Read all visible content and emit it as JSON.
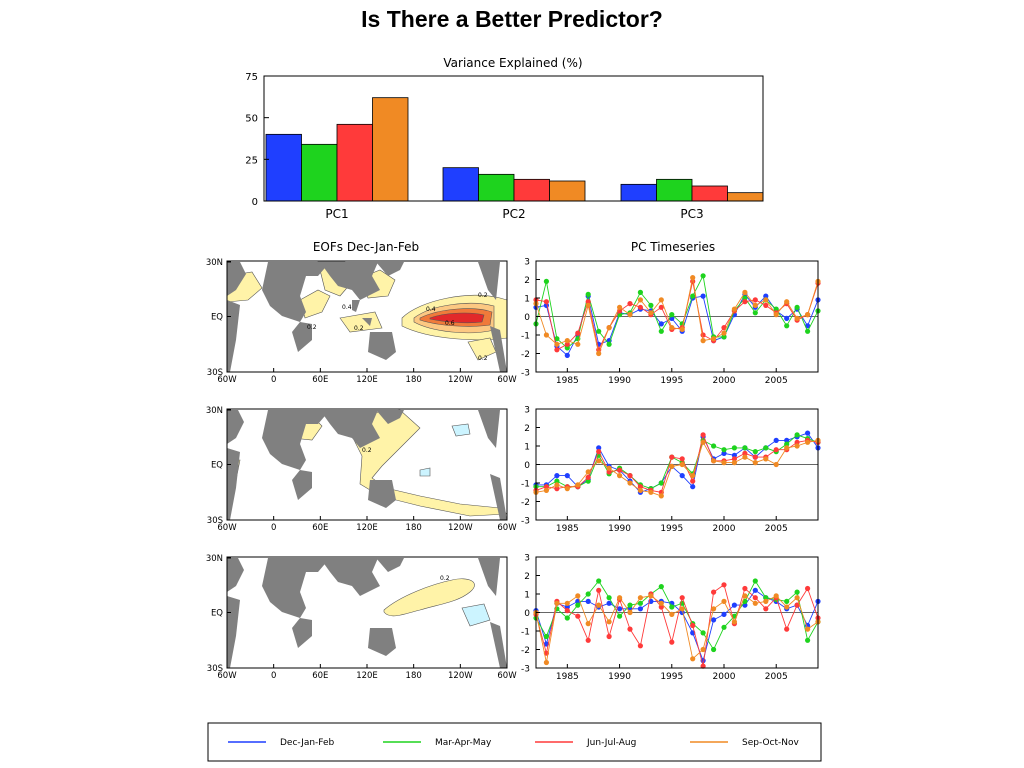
{
  "page_title": "Is There a Better Predictor?",
  "colors": {
    "dec_jan_feb": "#1f3fff",
    "mar_apr_may": "#1ed31e",
    "jun_jul_aug": "#ff3a3a",
    "sep_oct_nov": "#f08a24",
    "land": "#808080",
    "pos_contour": "#fff3a8",
    "neg_contour": "#ccf4ff",
    "strong_pos_1": "#fcc882",
    "strong_pos_2": "#f07a3a",
    "strong_pos_3": "#e2282a"
  },
  "legend": {
    "items": [
      "Dec-Jan-Feb",
      "Mar-Apr-May",
      "Jun-Jul-Aug",
      "Sep-Oct-Nov"
    ]
  },
  "maps": {
    "title": "EOFs Dec-Jan-Feb",
    "lat_labels": [
      "30N",
      "EQ",
      "30S"
    ],
    "lon_labels": [
      "60W",
      "0",
      "60E",
      "120E",
      "180",
      "120W",
      "60W"
    ],
    "panels": [
      {
        "contour_labels": [
          "0.2",
          "0.4",
          "0.2",
          "0.4",
          "0.6",
          "0.2",
          "0.2"
        ]
      },
      {
        "contour_labels": [
          "0.2"
        ]
      },
      {
        "contour_labels": [
          "0.2"
        ]
      }
    ]
  },
  "chart_data": [
    {
      "type": "bar",
      "title": "Variance Explained (%)",
      "categories": [
        "PC1",
        "PC2",
        "PC3"
      ],
      "series": [
        {
          "name": "Dec-Jan-Feb",
          "values": [
            40,
            20,
            10
          ]
        },
        {
          "name": "Mar-Apr-May",
          "values": [
            34,
            16,
            13
          ]
        },
        {
          "name": "Jun-Jul-Aug",
          "values": [
            46,
            13,
            9
          ]
        },
        {
          "name": "Sep-Oct-Nov",
          "values": [
            62,
            12,
            5
          ]
        }
      ],
      "yticks": [
        0,
        25,
        50,
        75
      ],
      "ylim": [
        0,
        75
      ],
      "grid": false
    },
    {
      "type": "line",
      "title": "PC Timeseries",
      "xlim": [
        1982,
        2009
      ],
      "xticks": [
        1985,
        1990,
        1995,
        2000,
        2005
      ],
      "ylim": [
        -3,
        3
      ],
      "yticks": [
        -3,
        -2,
        -1,
        0,
        1,
        2,
        3
      ],
      "x_start": 1982,
      "panels": [
        {
          "series": [
            {
              "name": "Dec-Jan-Feb",
              "values": [
                0.5,
                0.6,
                -1.6,
                -2.1,
                -1.0,
                1.1,
                -1.5,
                -1.3,
                0.2,
                0.1,
                0.4,
                0.3,
                -0.4,
                -0.1,
                -0.8,
                1.0,
                1.1,
                -1.3,
                -1.1,
                0.1,
                1.2,
                0.5,
                1.1,
                0.3,
                -0.1,
                0.4,
                -0.5,
                0.9
              ]
            },
            {
              "name": "Mar-Apr-May",
              "values": [
                -0.4,
                1.9,
                -1.2,
                -1.7,
                -1.2,
                1.2,
                -0.8,
                -1.5,
                0.1,
                0.2,
                1.3,
                0.6,
                -0.8,
                0.1,
                -0.4,
                1.1,
                2.2,
                -1.1,
                -1.1,
                0.3,
                1.0,
                0.2,
                0.9,
                0.4,
                -0.5,
                0.5,
                -0.8,
                0.3
              ]
            },
            {
              "name": "Jun-Jul-Aug",
              "values": [
                0.9,
                0.8,
                -1.8,
                -1.5,
                -0.9,
                0.8,
                -1.8,
                -0.6,
                0.3,
                0.7,
                0.5,
                0.1,
                0.5,
                -0.7,
                -0.6,
                1.9,
                -1.0,
                -1.3,
                -0.6,
                0.3,
                0.8,
                0.9,
                0.6,
                0.2,
                0.7,
                -0.2,
                0.1,
                1.8
              ]
            },
            {
              "name": "Sep-Oct-Nov",
              "values": [
                0.7,
                -1.0,
                -1.5,
                -1.3,
                -1.5,
                0.6,
                -2.0,
                -0.6,
                0.5,
                0.1,
                0.9,
                0.2,
                0.9,
                -0.6,
                -0.7,
                2.1,
                -1.3,
                -1.2,
                -0.9,
                0.4,
                1.3,
                0.6,
                0.9,
                0.1,
                0.8,
                -0.1,
                0.1,
                1.9
              ]
            }
          ]
        },
        {
          "series": [
            {
              "name": "Dec-Jan-Feb",
              "values": [
                -1.1,
                -1.1,
                -0.6,
                -0.6,
                -1.2,
                -0.8,
                0.9,
                -0.1,
                -0.3,
                -0.9,
                -1.5,
                -1.3,
                -1.0,
                -0.1,
                -0.6,
                -1.2,
                1.5,
                0.3,
                0.6,
                0.5,
                0.9,
                0.4,
                0.9,
                1.3,
                1.3,
                1.5,
                1.7,
                0.9
              ]
            },
            {
              "name": "Mar-Apr-May",
              "values": [
                -1.2,
                -1.2,
                -0.9,
                -1.2,
                -1.2,
                -0.9,
                0.5,
                -0.5,
                -0.2,
                -0.6,
                -1.1,
                -1.3,
                -1.0,
                0.4,
                0.1,
                -0.5,
                1.3,
                1.0,
                0.8,
                0.9,
                0.9,
                0.7,
                0.9,
                0.7,
                1.1,
                1.6,
                1.4,
                1.2
              ]
            },
            {
              "name": "Jun-Jul-Aug",
              "values": [
                -1.4,
                -1.2,
                -1.3,
                -1.2,
                -1.2,
                -0.7,
                0.7,
                -0.4,
                -0.3,
                -0.6,
                -1.2,
                -1.4,
                -1.5,
                0.4,
                0.3,
                -0.9,
                1.6,
                0.2,
                0.2,
                0.3,
                0.6,
                0.4,
                0.4,
                0.8,
                0.8,
                1.2,
                1.3,
                1.2
              ]
            },
            {
              "name": "Sep-Oct-Nov",
              "values": [
                -1.5,
                -1.4,
                -1.1,
                -1.3,
                -1.1,
                -0.4,
                0.2,
                -0.2,
                -0.6,
                -1.0,
                -1.4,
                -1.5,
                -1.7,
                -0.1,
                0.0,
                -0.6,
                1.2,
                0.2,
                0.1,
                0.1,
                0.4,
                0.1,
                0.3,
                0.0,
                0.9,
                1.0,
                1.2,
                1.3
              ]
            }
          ]
        },
        {
          "series": [
            {
              "name": "Dec-Jan-Feb",
              "values": [
                0.1,
                -1.7,
                0.5,
                0.3,
                0.6,
                0.6,
                0.3,
                0.5,
                0.2,
                0.2,
                0.2,
                0.6,
                0.6,
                0.5,
                0.0,
                -1.1,
                -2.6,
                -0.4,
                -0.1,
                0.4,
                0.4,
                1.2,
                0.8,
                0.6,
                0.2,
                0.4,
                -0.7,
                0.6
              ]
            },
            {
              "name": "Mar-Apr-May",
              "values": [
                -0.3,
                -1.3,
                0.2,
                -0.3,
                0.4,
                1.0,
                1.7,
                0.8,
                -0.2,
                0.4,
                0.5,
                1.0,
                1.4,
                0.3,
                0.5,
                -0.6,
                -1.1,
                -2.0,
                -0.8,
                -0.2,
                0.6,
                1.7,
                0.8,
                0.7,
                0.6,
                1.1,
                -1.5,
                -0.5
              ]
            },
            {
              "name": "Jun-Jul-Aug",
              "values": [
                -0.1,
                -2.2,
                0.6,
                0.1,
                -0.2,
                -1.5,
                1.2,
                -1.3,
                0.7,
                -0.9,
                -1.8,
                1.0,
                0.3,
                -1.6,
                0.8,
                -0.7,
                -2.9,
                1.1,
                1.5,
                -0.6,
                1.3,
                0.8,
                0.2,
                0.8,
                -0.9,
                0.4,
                1.3,
                -0.3
              ]
            },
            {
              "name": "Sep-Oct-Nov",
              "values": [
                0.0,
                -2.7,
                0.5,
                0.5,
                0.9,
                -0.6,
                0.4,
                -0.5,
                0.8,
                0.0,
                0.8,
                0.9,
                0.5,
                -0.1,
                0.2,
                -2.5,
                -2.0,
                0.2,
                0.6,
                -0.5,
                0.9,
                0.5,
                0.6,
                0.9,
                0.3,
                0.8,
                -0.9,
                -0.5
              ]
            }
          ]
        }
      ]
    }
  ]
}
